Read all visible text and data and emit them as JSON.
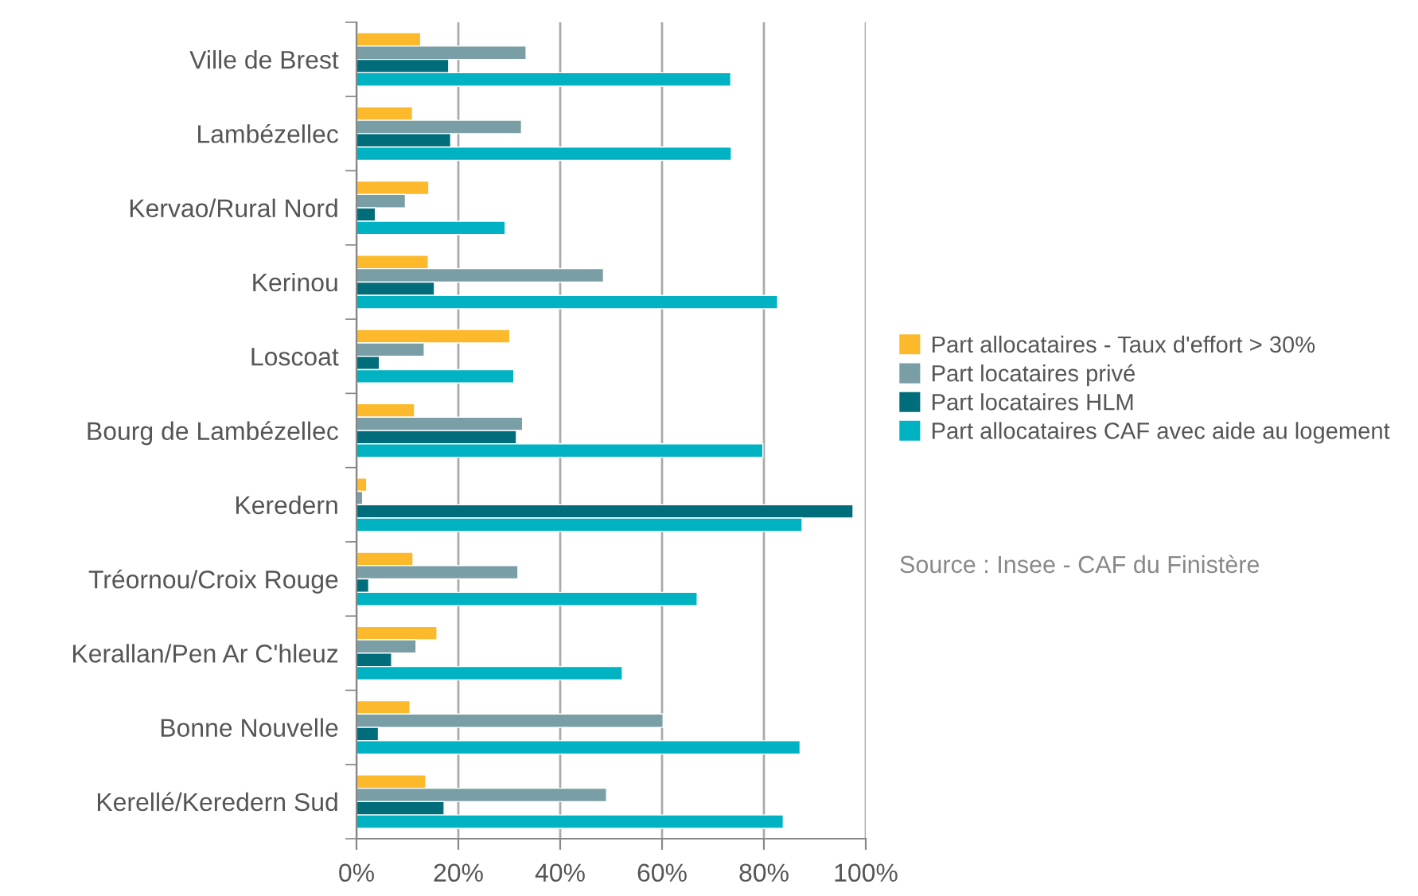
{
  "chart_data": {
    "type": "bar",
    "orientation": "horizontal",
    "categories": [
      "Ville de Brest",
      "Lambézellec",
      "Kervao/Rural Nord",
      "Kerinou",
      "Loscoat",
      "Bourg de Lambézellec",
      "Keredern",
      "Tréornou/Croix Rouge",
      "Kerallan/Pen Ar C'hleuz",
      "Bonne Nouvelle",
      "Kerellé/Keredern Sud"
    ],
    "series": [
      {
        "name": "Part allocataires - Taux d'effort > 30%",
        "color": "#fbb92b",
        "values": [
          12.6,
          11.0,
          14.2,
          14.1,
          30.1,
          11.4,
          2.0,
          11.1,
          15.8,
          10.5,
          13.6
        ]
      },
      {
        "name": "Part locataires privé",
        "color": "#7a9ea5",
        "values": [
          33.3,
          32.4,
          9.6,
          48.5,
          13.3,
          32.6,
          1.2,
          31.7,
          11.7,
          60.2,
          49.1
        ]
      },
      {
        "name": "Part locataires HLM",
        "color": "#006d7a",
        "values": [
          18.1,
          18.5,
          3.7,
          15.3,
          4.5,
          31.4,
          97.5,
          2.4,
          6.9,
          4.3,
          17.2
        ]
      },
      {
        "name": "Part allocataires CAF avec aide au logement",
        "color": "#00b2c2",
        "values": [
          73.5,
          73.6,
          29.2,
          82.7,
          30.9,
          79.8,
          87.5,
          66.9,
          52.2,
          87.1,
          83.8
        ]
      }
    ],
    "xlim": [
      0,
      100
    ],
    "xticks": [
      {
        "value": 0,
        "label": "0%"
      },
      {
        "value": 20,
        "label": "20%"
      },
      {
        "value": 40,
        "label": "40%"
      },
      {
        "value": 60,
        "label": "60%"
      },
      {
        "value": 80,
        "label": "80%"
      },
      {
        "value": 100,
        "label": "100%"
      }
    ],
    "grid": "x",
    "legend": "right",
    "annotations": [
      "Source : Insee - CAF du Finistère"
    ]
  }
}
